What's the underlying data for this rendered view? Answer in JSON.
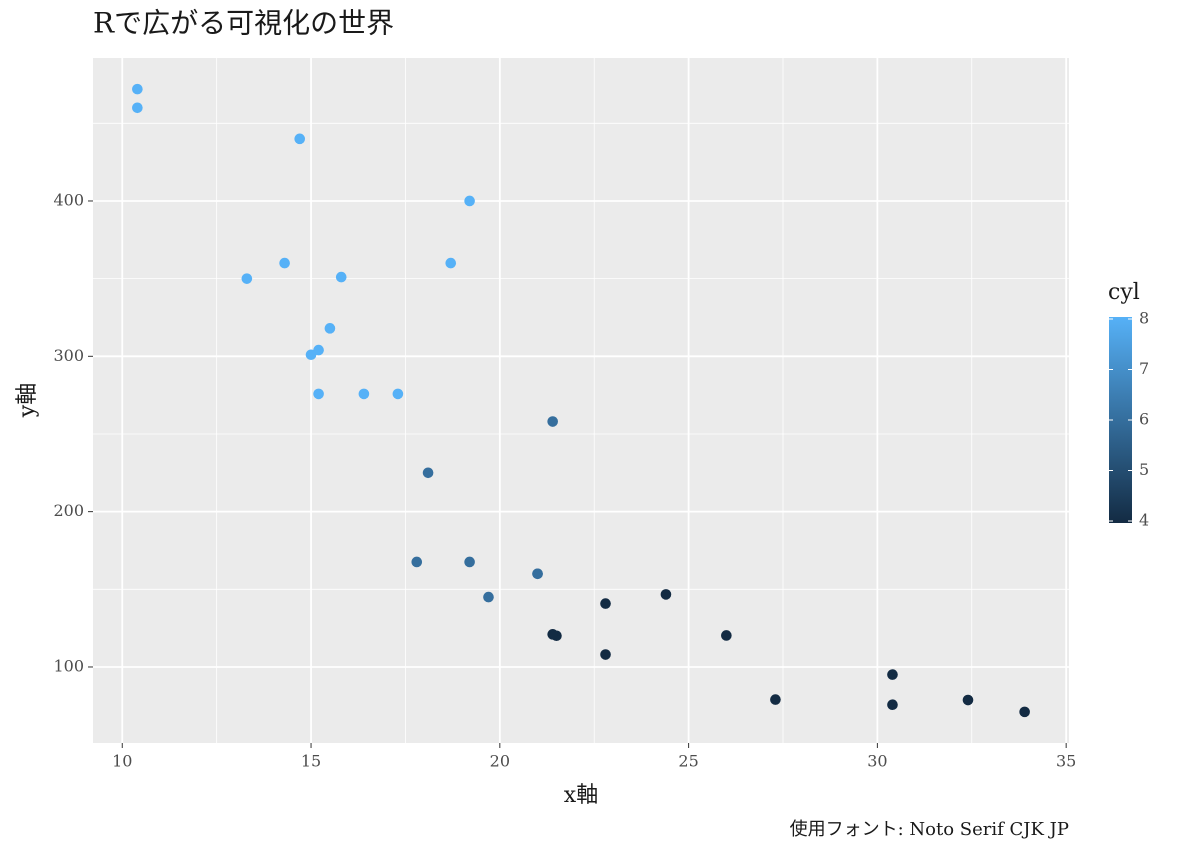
{
  "chart_data": {
    "type": "scatter",
    "title": "Rで広がる可視化の世界",
    "x_label": "x軸",
    "y_label": "y軸",
    "caption": "使用フォント: Noto Serif CJK JP",
    "x": [
      21.0,
      21.0,
      22.8,
      21.4,
      18.7,
      18.1,
      14.3,
      24.4,
      22.8,
      19.2,
      17.8,
      16.4,
      17.3,
      15.2,
      10.4,
      10.4,
      14.7,
      32.4,
      30.4,
      33.9,
      21.5,
      15.5,
      15.2,
      13.3,
      19.2,
      27.3,
      26.0,
      30.4,
      15.8,
      19.7,
      15.0,
      21.4
    ],
    "y": [
      160,
      160,
      108,
      258,
      360,
      225,
      360,
      146.7,
      140.8,
      167.6,
      167.6,
      275.8,
      275.8,
      275.8,
      472,
      460,
      440,
      78.7,
      75.7,
      71.1,
      120.1,
      318,
      304,
      350,
      400,
      79,
      120.3,
      95.1,
      351,
      145,
      301,
      121
    ],
    "color_values": [
      6,
      6,
      4,
      6,
      8,
      6,
      8,
      4,
      4,
      6,
      6,
      8,
      8,
      8,
      8,
      8,
      8,
      4,
      4,
      4,
      4,
      8,
      8,
      8,
      8,
      4,
      4,
      4,
      8,
      6,
      8,
      4
    ],
    "colorbar": {
      "title": "cyl",
      "low_color": "#132B43",
      "high_color": "#56B1F7",
      "lim": [
        4,
        8
      ],
      "ticks": [
        4,
        5,
        6,
        7,
        8
      ]
    },
    "xlim": [
      9.225,
      35.075
    ],
    "ylim": [
      51.055,
      492.045
    ],
    "xticks": [
      10,
      15,
      20,
      25,
      30,
      35
    ],
    "yticks": [
      100,
      200,
      300,
      400
    ],
    "x_minor_grid": [
      12.5,
      17.5,
      22.5,
      27.5,
      32.5
    ],
    "y_minor_grid": [
      150,
      250,
      350,
      450
    ],
    "grid": true,
    "panel_color": "#EBEBEB"
  }
}
